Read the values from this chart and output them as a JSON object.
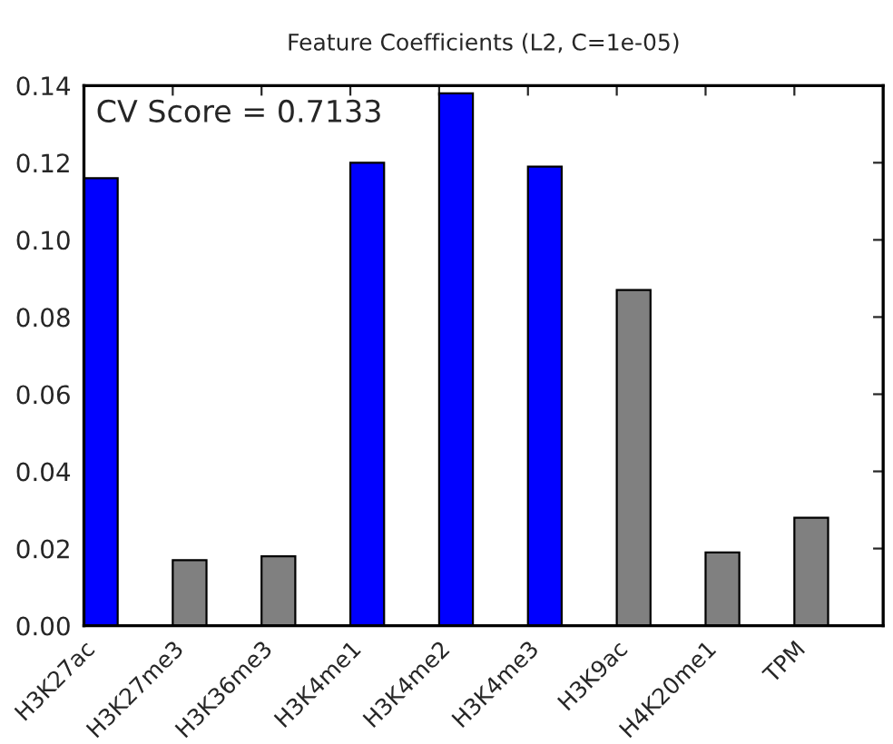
{
  "chart_data": {
    "type": "bar",
    "title": "Feature Coefficients (L2, C=1e-05)",
    "categories": [
      "H3K27ac",
      "H3K27me3",
      "H3K36me3",
      "H3K4me1",
      "H3K4me2",
      "H3K4me3",
      "H3K9ac",
      "H4K20me1",
      "TPM"
    ],
    "values": [
      0.116,
      0.017,
      0.018,
      0.12,
      0.138,
      0.119,
      0.087,
      0.019,
      0.028
    ],
    "colors": [
      "#0000ff",
      "#808080",
      "#808080",
      "#0000ff",
      "#0000ff",
      "#0000ff",
      "#808080",
      "#808080",
      "#808080"
    ],
    "ylim": [
      0,
      0.14
    ],
    "yticks": [
      {
        "value": 0,
        "label": "0.00"
      },
      {
        "value": 0.02,
        "label": "0.02"
      },
      {
        "value": 0.04,
        "label": "0.04"
      },
      {
        "value": 0.06,
        "label": "0.06"
      },
      {
        "value": 0.08,
        "label": "0.08"
      },
      {
        "value": 0.1,
        "label": "0.10"
      },
      {
        "value": 0.12,
        "label": "0.12"
      },
      {
        "value": 0.14,
        "label": "0.14"
      }
    ],
    "annotations": [
      "CV Score = 0.7133"
    ],
    "grid": false,
    "legend": false
  }
}
